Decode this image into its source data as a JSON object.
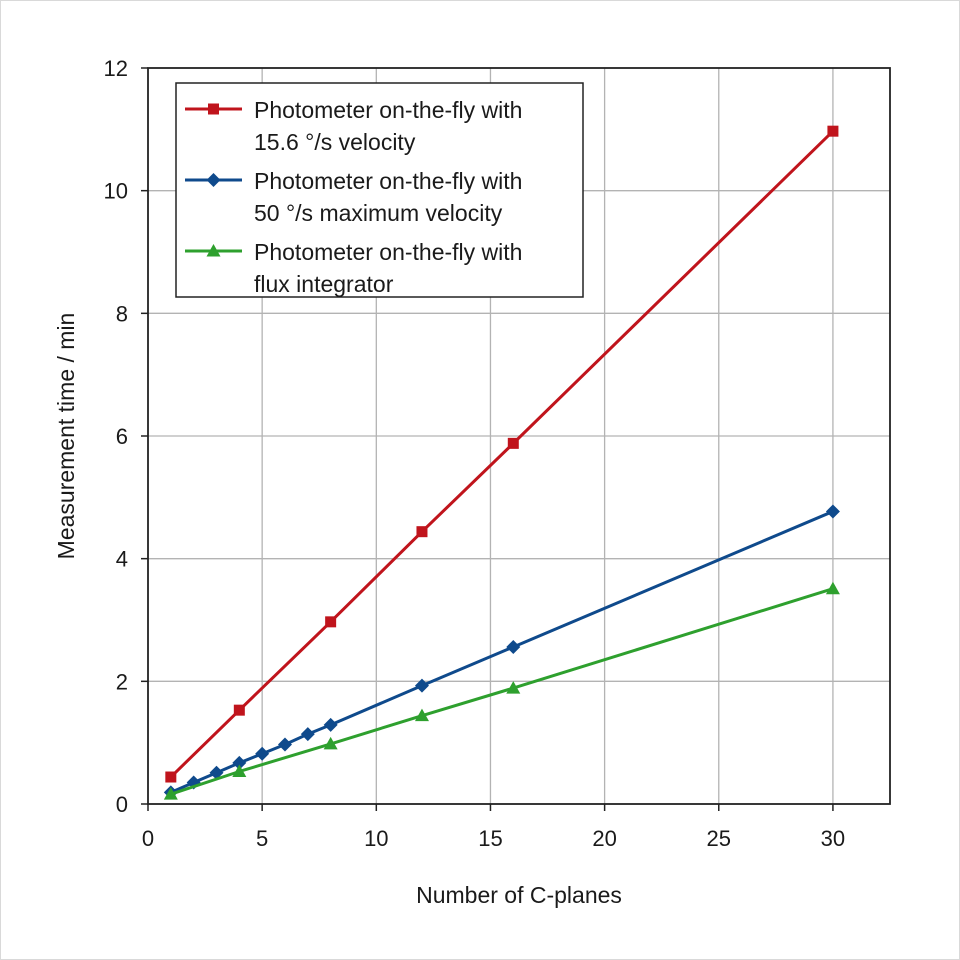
{
  "chart_data": {
    "type": "line",
    "title": "",
    "xlabel": "Number of C-planes",
    "ylabel": "Measurement time / min",
    "xlim": [
      0,
      32.5
    ],
    "ylim": [
      0,
      12
    ],
    "xticks": [
      0,
      5,
      10,
      15,
      20,
      25,
      30
    ],
    "yticks": [
      0,
      2,
      4,
      6,
      8,
      10,
      12
    ],
    "grid": true,
    "legend_position": "top-left",
    "series": [
      {
        "name_lines": [
          "Photometer on-the-fly with",
          "15.6 °/s velocity"
        ],
        "color": "#c0141c",
        "marker": "square",
        "points": [
          [
            1,
            0.44
          ],
          [
            4,
            1.53
          ],
          [
            8,
            2.97
          ],
          [
            12,
            4.44
          ],
          [
            16,
            5.88
          ],
          [
            30,
            10.97
          ]
        ]
      },
      {
        "name_lines": [
          "Photometer on-the-fly with",
          "50 °/s maximum velocity"
        ],
        "color": "#0f4a8c",
        "marker": "diamond",
        "points": [
          [
            1,
            0.19
          ],
          [
            2,
            0.35
          ],
          [
            3,
            0.51
          ],
          [
            4,
            0.67
          ],
          [
            5,
            0.82
          ],
          [
            6,
            0.97
          ],
          [
            7,
            1.14
          ],
          [
            8,
            1.29
          ],
          [
            12,
            1.93
          ],
          [
            16,
            2.56
          ],
          [
            30,
            4.77
          ]
        ]
      },
      {
        "name_lines": [
          "Photometer on-the-fly with",
          "flux integrator"
        ],
        "color": "#2ea02e",
        "marker": "triangle",
        "points": [
          [
            1,
            0.16
          ],
          [
            4,
            0.53
          ],
          [
            8,
            0.98
          ],
          [
            12,
            1.44
          ],
          [
            16,
            1.89
          ],
          [
            30,
            3.51
          ]
        ]
      }
    ]
  }
}
